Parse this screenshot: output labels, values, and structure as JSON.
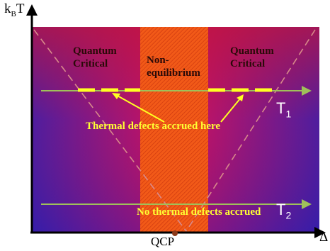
{
  "axes": {
    "y_label": "k",
    "y_label_sub": "B",
    "y_label_tail": "T",
    "x_label": "Δ",
    "origin_label": "QCP"
  },
  "regions": {
    "left": [
      "Quantum",
      "Critical"
    ],
    "middle": [
      "Non-",
      "equilibrium"
    ],
    "right": [
      "Quantum",
      "Critical"
    ]
  },
  "lines": {
    "t1_main": "T",
    "t1_sub": "1",
    "t2_main": "T",
    "t2_sub": "2"
  },
  "annotations": {
    "thermal_accrued": "Thermal defects accrued here",
    "no_thermal": "No thermal defects accrued"
  },
  "colors": {
    "background_outer": "#3a1fb0",
    "background_center": "#d81060",
    "top_edge": "#c4143a",
    "nonequilibrium_band": "#f25a18",
    "trajectory_line": "#9fc05a",
    "defect_dashes": "#ffff22",
    "annotation_text": "#ffff33",
    "qcp_marker": "#8b3a1a"
  }
}
